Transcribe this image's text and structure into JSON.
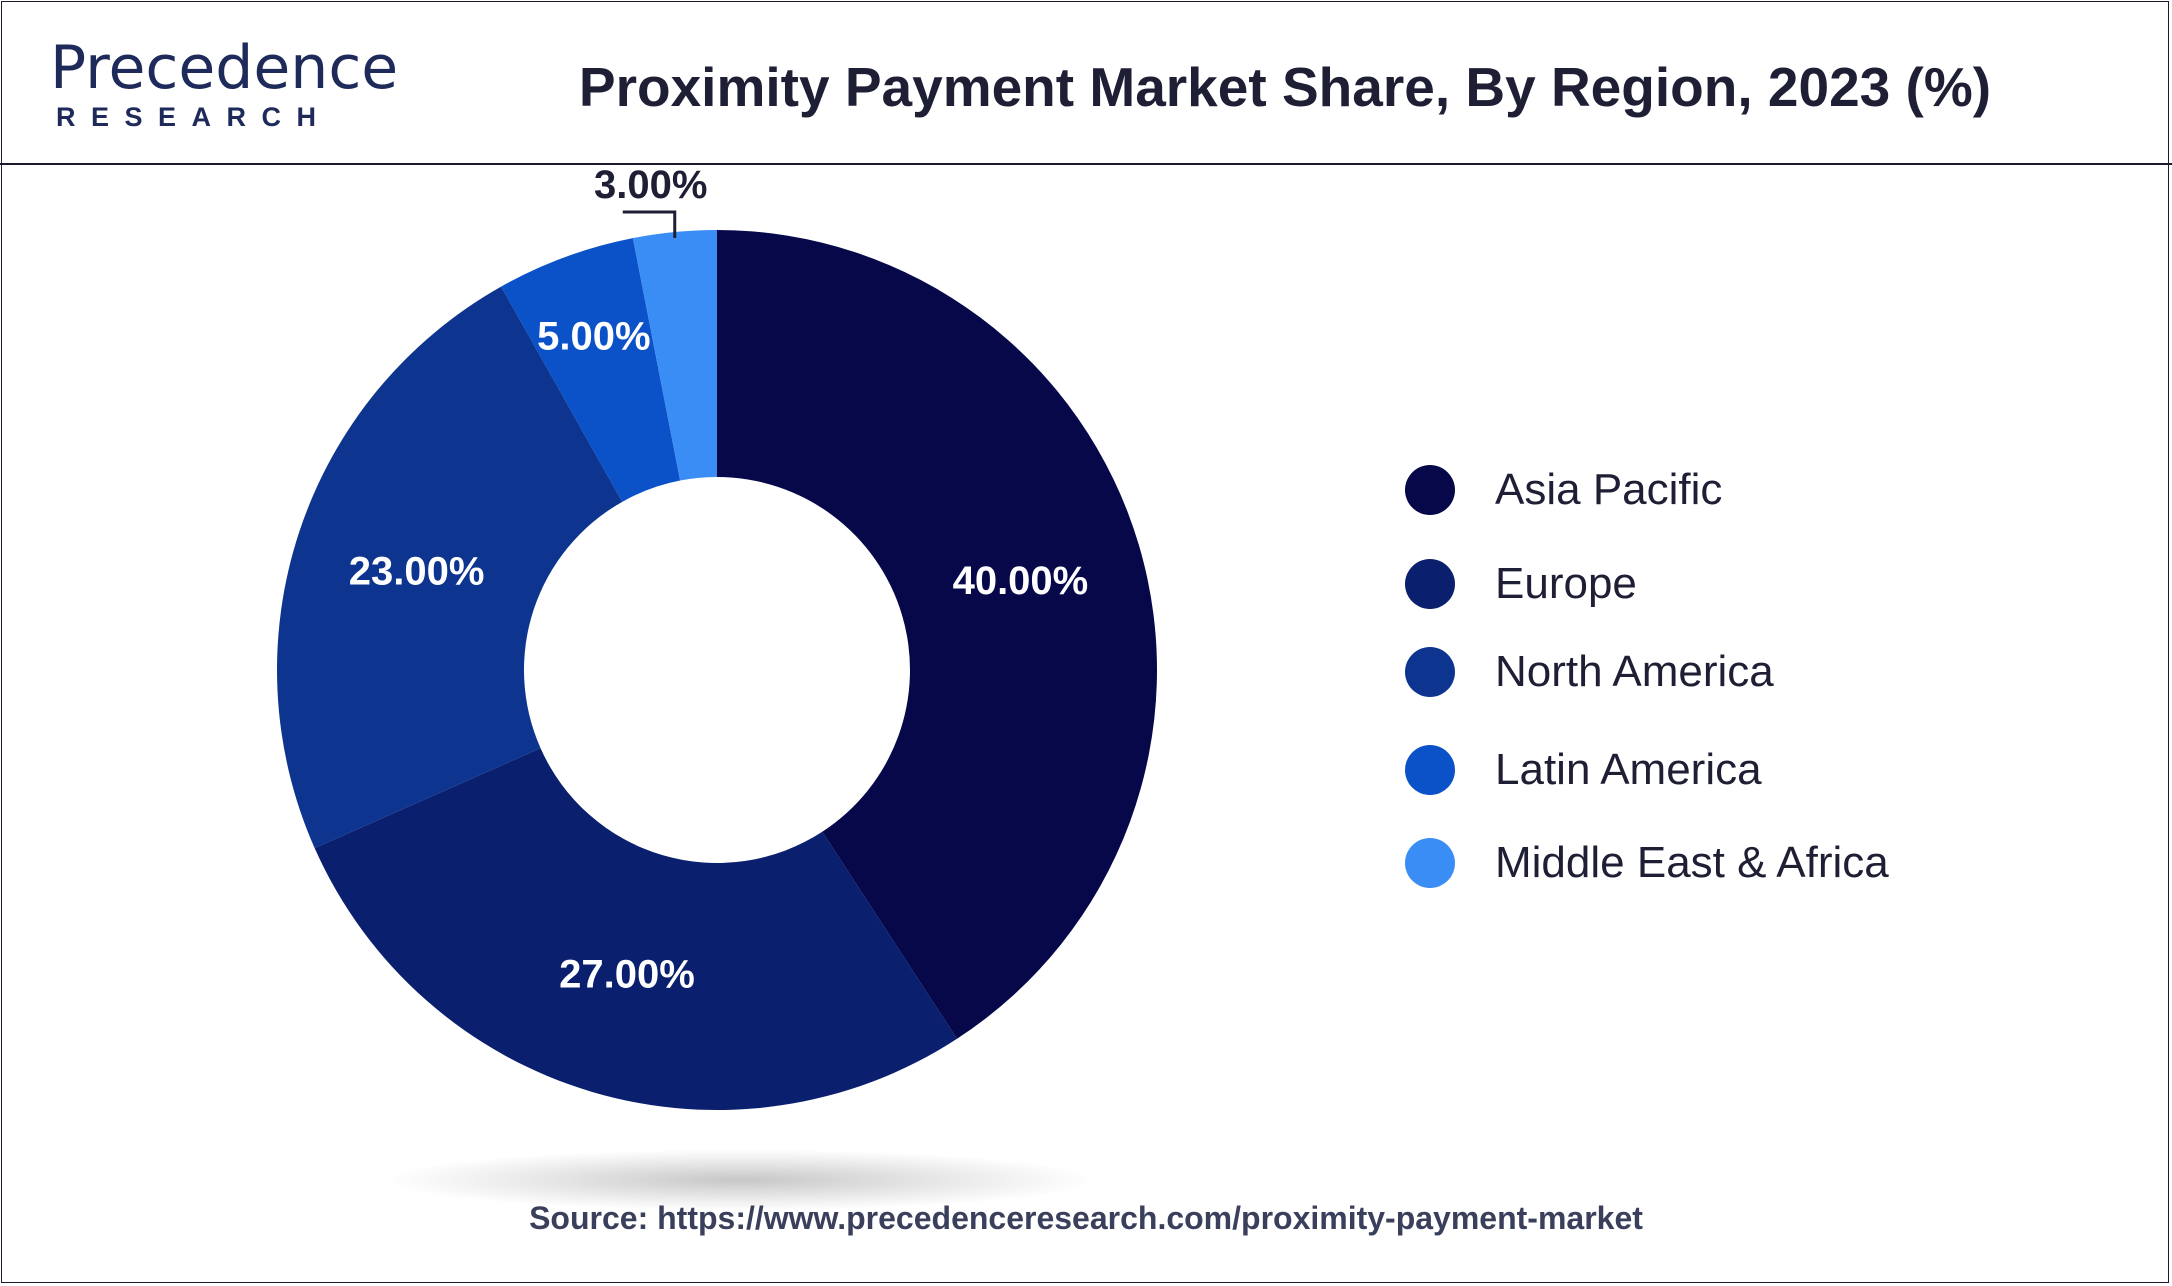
{
  "brand": {
    "name": "Precedence",
    "sub": "RESEARCH"
  },
  "title": "Proximity Payment Market Share, By Region, 2023 (%)",
  "source": "Source: https://www.precedenceresearch.com/proximity-payment-market",
  "chart_data": {
    "type": "pie",
    "variant": "donut",
    "title": "Proximity Payment Market Share, By Region, 2023 (%)",
    "categories": [
      "Asia Pacific",
      "Europe",
      "North America",
      "Latin America",
      "Middle East & Africa"
    ],
    "values": [
      40,
      27,
      23,
      5,
      3
    ],
    "labels": [
      "40.00%",
      "27.00%",
      "23.00%",
      "5.00%",
      "3.00%"
    ],
    "colors": [
      "#06084a",
      "#0a1f6e",
      "#0d3590",
      "#0b52c8",
      "#3a8df5"
    ],
    "legend_position": "right",
    "start": "top, clockwise"
  }
}
